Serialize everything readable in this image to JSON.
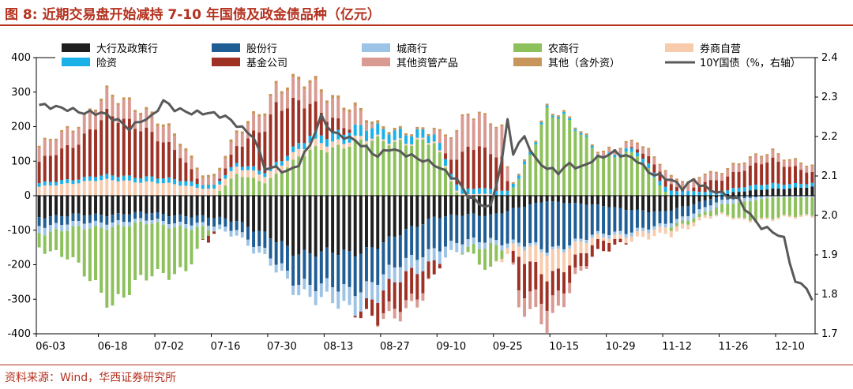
{
  "header": {
    "title": "图 8:  近期交易盘开始减持 7-10 年国债及政金债品种（亿元）"
  },
  "footer": {
    "source": "资料来源：Wind，华西证券研究所"
  },
  "colors": {
    "大行及政策行": "#1f1f1f",
    "股份行": "#1f5d95",
    "城商行": "#9dc3e6",
    "农商行": "#8dc15b",
    "券商自营": "#f8cbad",
    "险资": "#1ab0e8",
    "基金公司": "#9e3024",
    "其他资管产品": "#d99a92",
    "其他（含外资）": "#c8955b",
    "10Y国债（%，右轴）": "#595959"
  },
  "chart_data": {
    "type": "bar",
    "subtype": "stacked bar with line on secondary axis",
    "title": "近期交易盘开始减持 7-10 年国债及政金债品种（亿元）",
    "units": "亿元",
    "left_axis": {
      "range": [
        -400,
        400
      ],
      "ticks": [
        "400",
        "300",
        "200",
        "100",
        "0",
        "-100",
        "-200",
        "-300",
        "-400"
      ]
    },
    "right_axis": {
      "range": [
        1.7,
        2.4
      ],
      "ticks": [
        "2.4",
        "2.3",
        "2.2",
        "2.1",
        "2.0",
        "1.9",
        "1.8",
        "1.7"
      ]
    },
    "x_tick_labels": [
      "06-03",
      "06-18",
      "07-02",
      "07-16",
      "07-30",
      "08-13",
      "08-27",
      "09-10",
      "09-25",
      "10-15",
      "10-29",
      "11-12",
      "11-26",
      "12-10"
    ],
    "x_tick_positions": [
      0,
      11,
      21,
      31,
      41,
      51,
      61,
      71,
      81,
      91,
      101,
      111,
      121,
      131
    ],
    "n_points": 138,
    "legend_placement": "top",
    "legend": [
      "大行及政策行",
      "股份行",
      "城商行",
      "农商行",
      "券商自营",
      "险资",
      "基金公司",
      "其他资管产品",
      "其他（含外资）",
      "10Y国债（%，右轴）"
    ],
    "positive_stack_order": [
      "大行及政策行",
      "农商行",
      "券商自营",
      "险资",
      "基金公司",
      "其他资管产品",
      "其他（含外资）"
    ],
    "negative_stack_order": [
      "大行及政策行",
      "股份行",
      "城商行",
      "农商行",
      "券商自营",
      "基金公司",
      "其他资管产品"
    ],
    "series": [
      {
        "name": "大行及政策行",
        "anchors": [
          [
            0,
            -60
          ],
          [
            20,
            -50
          ],
          [
            35,
            -70
          ],
          [
            45,
            -160
          ],
          [
            55,
            -170
          ],
          [
            62,
            -130
          ],
          [
            70,
            -60
          ],
          [
            80,
            -55
          ],
          [
            90,
            -15
          ],
          [
            100,
            -30
          ],
          [
            110,
            -50
          ],
          [
            120,
            -5
          ],
          [
            123,
            10
          ],
          [
            130,
            20
          ],
          [
            137,
            25
          ]
        ]
      },
      {
        "name": "股份行",
        "anchors": [
          [
            0,
            -25
          ],
          [
            20,
            -20
          ],
          [
            35,
            -25
          ],
          [
            45,
            -80
          ],
          [
            55,
            -110
          ],
          [
            62,
            -90
          ],
          [
            70,
            -90
          ],
          [
            80,
            -70
          ],
          [
            90,
            -140
          ],
          [
            100,
            -80
          ],
          [
            110,
            -40
          ],
          [
            120,
            -15
          ],
          [
            130,
            0
          ],
          [
            137,
            0
          ]
        ]
      },
      {
        "name": "城商行",
        "anchors": [
          [
            0,
            -20
          ],
          [
            20,
            -10
          ],
          [
            35,
            -15
          ],
          [
            45,
            -25
          ],
          [
            55,
            -55
          ],
          [
            62,
            -45
          ],
          [
            70,
            -35
          ],
          [
            80,
            -15
          ],
          [
            90,
            -8
          ],
          [
            100,
            -10
          ],
          [
            110,
            -10
          ],
          [
            120,
            -15
          ],
          [
            130,
            -5
          ],
          [
            137,
            -5
          ]
        ]
      },
      {
        "name": "农商行",
        "anchors": [
          [
            0,
            -40
          ],
          [
            5,
            -80
          ],
          [
            13,
            -220
          ],
          [
            20,
            -150
          ],
          [
            26,
            -120
          ],
          [
            30,
            -15
          ],
          [
            35,
            60
          ],
          [
            40,
            40
          ],
          [
            48,
            130
          ],
          [
            55,
            150
          ],
          [
            62,
            160
          ],
          [
            70,
            150
          ],
          [
            74,
            10
          ],
          [
            80,
            -70
          ],
          [
            85,
            50
          ],
          [
            90,
            240
          ],
          [
            95,
            200
          ],
          [
            100,
            110
          ],
          [
            106,
            120
          ],
          [
            112,
            -10
          ],
          [
            118,
            -10
          ],
          [
            125,
            -50
          ],
          [
            130,
            -60
          ],
          [
            137,
            -50
          ]
        ]
      },
      {
        "name": "券商自营",
        "anchors": [
          [
            0,
            25
          ],
          [
            10,
            45
          ],
          [
            20,
            40
          ],
          [
            30,
            20
          ],
          [
            40,
            20
          ],
          [
            50,
            20
          ],
          [
            60,
            5
          ],
          [
            70,
            5
          ],
          [
            80,
            5
          ],
          [
            85,
            -30
          ],
          [
            90,
            -70
          ],
          [
            95,
            -40
          ],
          [
            100,
            -10
          ],
          [
            110,
            -20
          ],
          [
            120,
            -5
          ],
          [
            130,
            -5
          ],
          [
            137,
            -5
          ]
        ]
      },
      {
        "name": "险资",
        "anchors": [
          [
            0,
            10
          ],
          [
            20,
            15
          ],
          [
            35,
            10
          ],
          [
            45,
            15
          ],
          [
            55,
            30
          ],
          [
            62,
            30
          ],
          [
            70,
            20
          ],
          [
            80,
            15
          ],
          [
            90,
            5
          ],
          [
            100,
            5
          ],
          [
            110,
            15
          ],
          [
            120,
            10
          ],
          [
            130,
            15
          ],
          [
            137,
            10
          ]
        ]
      },
      {
        "name": "基金公司",
        "anchors": [
          [
            0,
            60
          ],
          [
            7,
            110
          ],
          [
            12,
            170
          ],
          [
            18,
            150
          ],
          [
            25,
            70
          ],
          [
            30,
            -20
          ],
          [
            36,
            60
          ],
          [
            42,
            170
          ],
          [
            48,
            90
          ],
          [
            55,
            10
          ],
          [
            60,
            -60
          ],
          [
            65,
            -90
          ],
          [
            70,
            -40
          ],
          [
            76,
            130
          ],
          [
            82,
            90
          ],
          [
            85,
            -100
          ],
          [
            90,
            -80
          ],
          [
            95,
            -40
          ],
          [
            100,
            -30
          ],
          [
            106,
            10
          ],
          [
            110,
            30
          ],
          [
            115,
            0
          ],
          [
            118,
            30
          ],
          [
            125,
            50
          ],
          [
            130,
            70
          ],
          [
            137,
            30
          ]
        ]
      },
      {
        "name": "其他资管产品",
        "anchors": [
          [
            0,
            40
          ],
          [
            10,
            55
          ],
          [
            20,
            50
          ],
          [
            30,
            20
          ],
          [
            40,
            50
          ],
          [
            50,
            60
          ],
          [
            56,
            50
          ],
          [
            62,
            -30
          ],
          [
            68,
            -20
          ],
          [
            75,
            100
          ],
          [
            82,
            80
          ],
          [
            85,
            -50
          ],
          [
            90,
            -60
          ],
          [
            95,
            -20
          ],
          [
            100,
            10
          ],
          [
            110,
            20
          ],
          [
            120,
            20
          ],
          [
            130,
            20
          ],
          [
            137,
            15
          ]
        ]
      },
      {
        "name": "其他（含外资）",
        "anchors": [
          [
            0,
            5
          ],
          [
            20,
            8
          ],
          [
            40,
            8
          ],
          [
            55,
            10
          ],
          [
            70,
            5
          ],
          [
            80,
            5
          ],
          [
            90,
            5
          ],
          [
            100,
            5
          ],
          [
            110,
            5
          ],
          [
            120,
            5
          ],
          [
            130,
            5
          ],
          [
            137,
            5
          ]
        ]
      },
      {
        "name": "10Y国债（%，右轴）",
        "axis": "right",
        "anchors": [
          [
            0,
            2.28
          ],
          [
            5,
            2.27
          ],
          [
            8,
            2.26
          ],
          [
            11,
            2.26
          ],
          [
            14,
            2.24
          ],
          [
            16,
            2.22
          ],
          [
            18,
            2.24
          ],
          [
            20,
            2.25
          ],
          [
            22,
            2.29
          ],
          [
            24,
            2.27
          ],
          [
            27,
            2.26
          ],
          [
            30,
            2.26
          ],
          [
            33,
            2.25
          ],
          [
            36,
            2.22
          ],
          [
            38,
            2.2
          ],
          [
            40,
            2.12
          ],
          [
            42,
            2.12
          ],
          [
            44,
            2.11
          ],
          [
            46,
            2.13
          ],
          [
            48,
            2.18
          ],
          [
            50,
            2.25
          ],
          [
            52,
            2.21
          ],
          [
            54,
            2.2
          ],
          [
            56,
            2.19
          ],
          [
            58,
            2.17
          ],
          [
            60,
            2.15
          ],
          [
            62,
            2.17
          ],
          [
            64,
            2.16
          ],
          [
            66,
            2.15
          ],
          [
            68,
            2.14
          ],
          [
            70,
            2.13
          ],
          [
            72,
            2.11
          ],
          [
            74,
            2.09
          ],
          [
            76,
            2.05
          ],
          [
            78,
            2.03
          ],
          [
            80,
            2.02
          ],
          [
            82,
            2.14
          ],
          [
            83,
            2.24
          ],
          [
            84,
            2.16
          ],
          [
            86,
            2.2
          ],
          [
            88,
            2.14
          ],
          [
            90,
            2.12
          ],
          [
            92,
            2.11
          ],
          [
            94,
            2.13
          ],
          [
            96,
            2.12
          ],
          [
            98,
            2.14
          ],
          [
            100,
            2.15
          ],
          [
            102,
            2.16
          ],
          [
            104,
            2.15
          ],
          [
            106,
            2.14
          ],
          [
            108,
            2.11
          ],
          [
            110,
            2.1
          ],
          [
            112,
            2.09
          ],
          [
            114,
            2.07
          ],
          [
            116,
            2.09
          ],
          [
            118,
            2.07
          ],
          [
            120,
            2.06
          ],
          [
            122,
            2.05
          ],
          [
            124,
            2.04
          ],
          [
            126,
            2.0
          ],
          [
            128,
            1.97
          ],
          [
            130,
            1.96
          ],
          [
            132,
            1.94
          ],
          [
            134,
            1.83
          ],
          [
            136,
            1.82
          ],
          [
            137,
            1.78
          ]
        ]
      }
    ]
  }
}
